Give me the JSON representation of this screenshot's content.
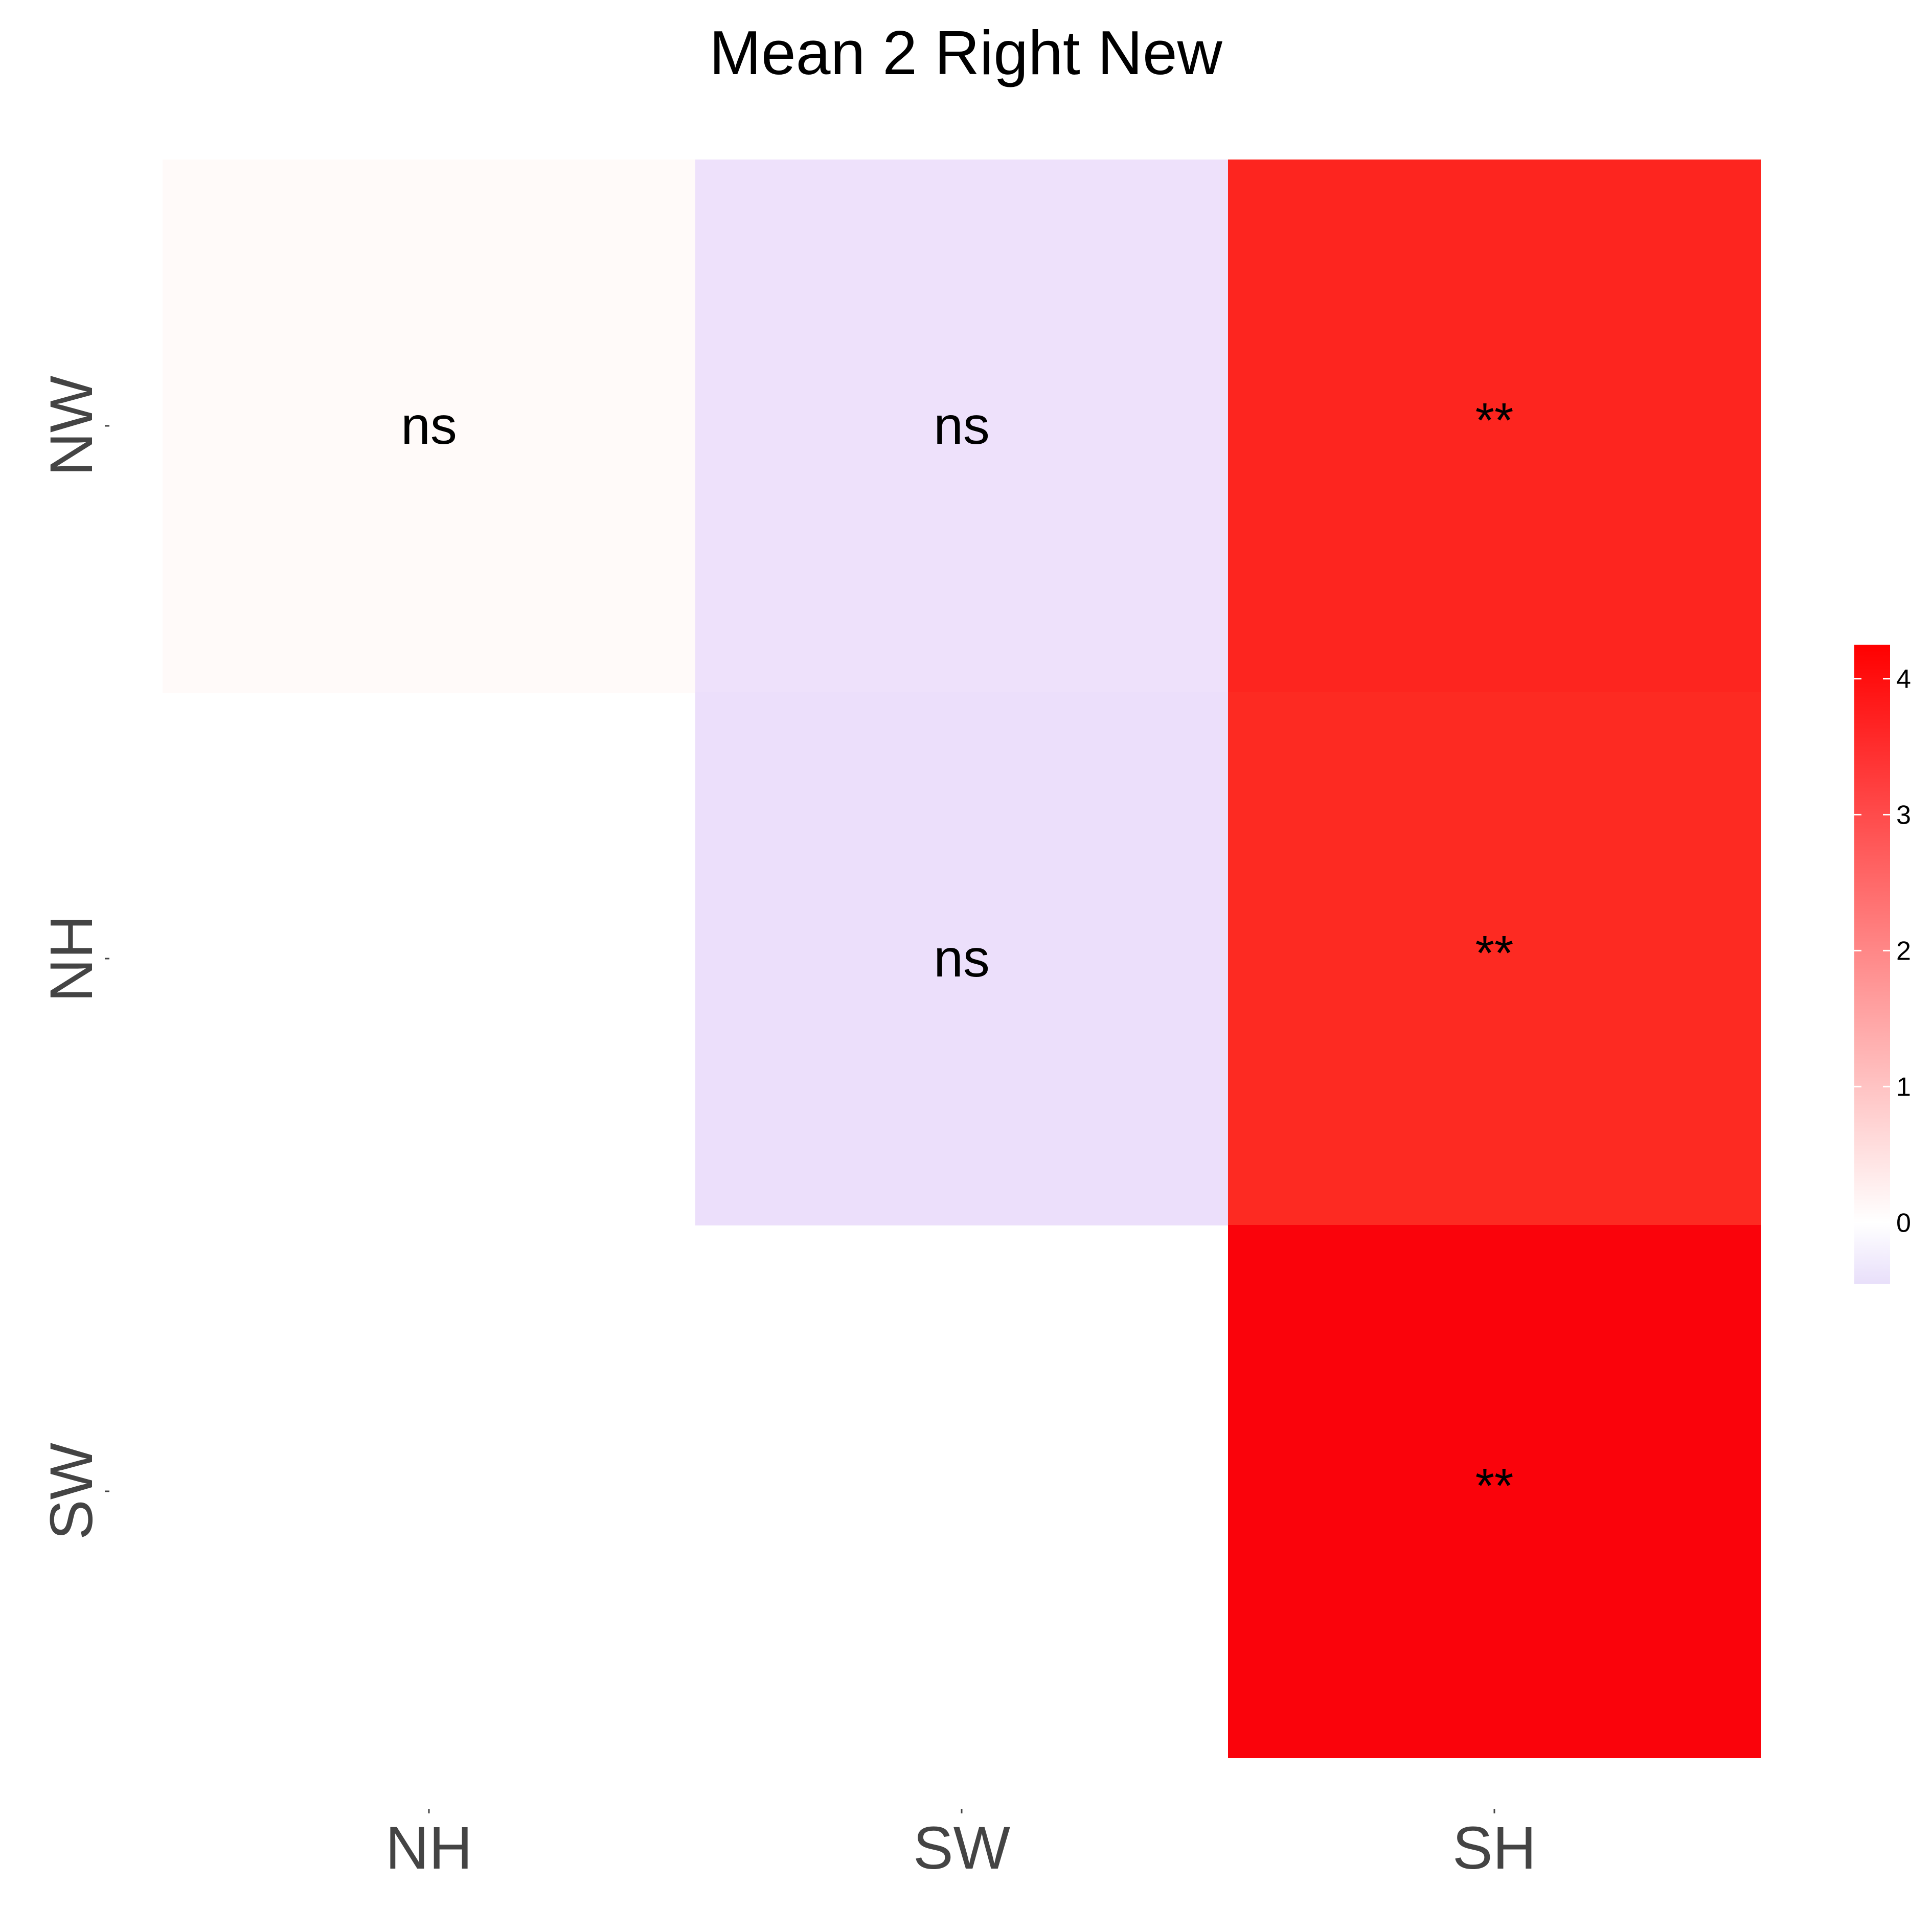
{
  "chart_data": {
    "type": "heatmap",
    "title": "Mean 2 Right New",
    "xlabel": "",
    "ylabel": "",
    "x_categories": [
      "NH",
      "SW",
      "SH"
    ],
    "y_categories": [
      "NW",
      "NH",
      "SW"
    ],
    "cells": [
      {
        "row": "NW",
        "col": "NH",
        "value": 0.04,
        "label": "ns",
        "color": "#fffaf9"
      },
      {
        "row": "NW",
        "col": "SW",
        "value": -0.35,
        "label": "ns",
        "color": "#eee1fb"
      },
      {
        "row": "NW",
        "col": "SH",
        "value": 3.85,
        "label": "**",
        "color": "#fd251f"
      },
      {
        "row": "NH",
        "col": "SW",
        "value": -0.4,
        "label": "ns",
        "color": "#ecdffb"
      },
      {
        "row": "NH",
        "col": "SH",
        "value": 3.8,
        "label": "**",
        "color": "#fd2a22"
      },
      {
        "row": "SW",
        "col": "SH",
        "value": 4.2,
        "label": "**",
        "color": "#fa030b"
      }
    ],
    "colorbar": {
      "ticks": [
        0,
        1,
        2,
        3,
        4
      ],
      "range": [
        -0.45,
        4.25
      ],
      "colors": {
        "low": "#e8dffa",
        "mid": "#ffffff",
        "high": "#ff0000"
      },
      "placement": "right"
    },
    "grid": false
  }
}
